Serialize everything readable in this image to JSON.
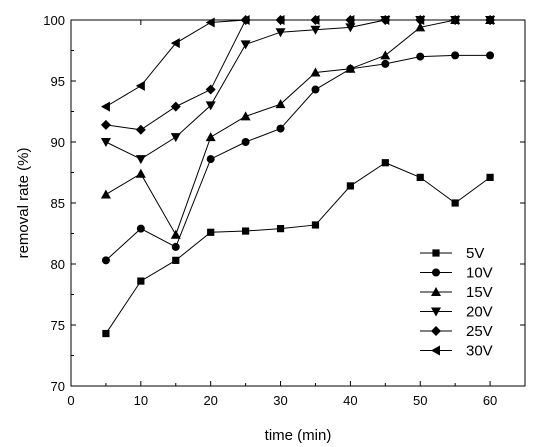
{
  "chart_data": {
    "type": "line",
    "title": "",
    "xlabel": "time (min)",
    "ylabel": "removal rate (%)",
    "xlim": [
      0,
      65
    ],
    "ylim": [
      70,
      100
    ],
    "xticks": [
      0,
      10,
      20,
      30,
      40,
      50,
      60
    ],
    "yticks": [
      70,
      75,
      80,
      85,
      90,
      95,
      100
    ],
    "x": [
      5,
      10,
      15,
      20,
      25,
      30,
      35,
      40,
      45,
      50,
      55,
      60
    ],
    "grid": false,
    "legend_position": "bottom-right",
    "line_color": "#000000",
    "series": [
      {
        "name": "5V",
        "marker": "square",
        "values": [
          74.3,
          78.6,
          80.3,
          82.6,
          82.7,
          82.9,
          83.2,
          86.4,
          88.3,
          87.1,
          85.0,
          87.1
        ]
      },
      {
        "name": "10V",
        "marker": "circle",
        "values": [
          80.3,
          82.9,
          81.4,
          88.6,
          90.0,
          91.1,
          94.3,
          96.0,
          96.4,
          97.0,
          97.1,
          97.1
        ]
      },
      {
        "name": "15V",
        "marker": "triangle-up",
        "values": [
          85.7,
          87.4,
          82.4,
          90.4,
          92.1,
          93.1,
          95.7,
          96.0,
          97.1,
          99.4,
          100.0,
          100.0
        ]
      },
      {
        "name": "20V",
        "marker": "triangle-down",
        "values": [
          90.0,
          88.6,
          90.4,
          93.0,
          98.0,
          99.0,
          99.2,
          99.4,
          100.0,
          100.0,
          100.0,
          100.0
        ]
      },
      {
        "name": "25V",
        "marker": "diamond",
        "values": [
          91.4,
          91.0,
          92.9,
          94.3,
          100.0,
          100.0,
          100.0,
          100.0,
          100.0,
          100.0,
          100.0,
          100.0
        ]
      },
      {
        "name": "30V",
        "marker": "triangle-left",
        "values": [
          92.9,
          94.6,
          98.1,
          99.8,
          100.0,
          100.0,
          100.0,
          100.0,
          100.0,
          100.0,
          100.0,
          100.0
        ]
      }
    ]
  }
}
